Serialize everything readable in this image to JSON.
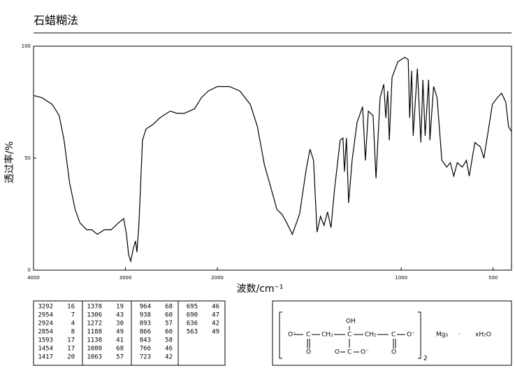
{
  "chart_data": {
    "type": "line",
    "title": "石蜡糊法",
    "x_label": "波数/cm⁻¹",
    "y_label": "透过率/%",
    "xlim": [
      4000,
      400
    ],
    "x_scale_break": 2000,
    "xticks": [
      4000,
      3000,
      2000,
      1000,
      500
    ],
    "ylim": [
      0,
      100
    ],
    "yticks": [
      0,
      50,
      100
    ],
    "color": "#000000",
    "x": [
      4000,
      3909,
      3796,
      3721,
      3668,
      3608,
      3547,
      3494,
      3419,
      3366,
      3306,
      3230,
      3155,
      3079,
      3019,
      2989,
      2966,
      2943,
      2913,
      2890,
      2875,
      2853,
      2815,
      2777,
      2702,
      2626,
      2513,
      2438,
      2362,
      2249,
      2174,
      2098,
      2000,
      1935,
      1878,
      1821,
      1782,
      1744,
      1706,
      1676,
      1649,
      1622,
      1592,
      1553,
      1515,
      1496,
      1477,
      1458,
      1439,
      1420,
      1401,
      1382,
      1363,
      1332,
      1317,
      1309,
      1298,
      1286,
      1267,
      1240,
      1210,
      1195,
      1179,
      1153,
      1137,
      1115,
      1095,
      1084,
      1073,
      1065,
      1050,
      1019,
      981,
      962,
      954,
      943,
      935,
      912,
      893,
      882,
      870,
      851,
      844,
      824,
      805,
      779,
      752,
      733,
      714,
      695,
      668,
      645,
      630,
      599,
      569,
      550,
      523,
      504,
      477,
      454,
      431,
      416,
      401
    ],
    "values": [
      78,
      77,
      74,
      69,
      58,
      39,
      27,
      21,
      18,
      18,
      16,
      18,
      18,
      21,
      23,
      16,
      7,
      4,
      10,
      13,
      8,
      21,
      58,
      63,
      65,
      68,
      71,
      70,
      70,
      72,
      77,
      80,
      82,
      82,
      80,
      74,
      64,
      47,
      36,
      27,
      25,
      21,
      16,
      25,
      46,
      54,
      49,
      17,
      24,
      20,
      26,
      19,
      36,
      58,
      59,
      44,
      59,
      30,
      49,
      66,
      73,
      49,
      71,
      69,
      41,
      77,
      83,
      68,
      80,
      58,
      86,
      93,
      95,
      94,
      68,
      89,
      60,
      90,
      57,
      85,
      60,
      85,
      58,
      82,
      77,
      49,
      46,
      48,
      42,
      48,
      46,
      49,
      42,
      57,
      55,
      50,
      64,
      74,
      77,
      79,
      75,
      64,
      62
    ],
    "peak_table": [
      [
        3292,
        16
      ],
      [
        2954,
        7
      ],
      [
        2924,
        4
      ],
      [
        2854,
        8
      ],
      [
        1593,
        17
      ],
      [
        1454,
        17
      ],
      [
        1417,
        20
      ],
      [
        1378,
        19
      ],
      [
        1306,
        43
      ],
      [
        1272,
        30
      ],
      [
        1188,
        49
      ],
      [
        1138,
        41
      ],
      [
        1080,
        68
      ],
      [
        1063,
        57
      ],
      [
        964,
        68
      ],
      [
        938,
        60
      ],
      [
        893,
        57
      ],
      [
        866,
        60
      ],
      [
        843,
        58
      ],
      [
        766,
        46
      ],
      [
        723,
        42
      ],
      [
        695,
        46
      ],
      [
        690,
        47
      ],
      [
        636,
        42
      ],
      [
        563,
        49
      ]
    ],
    "structure": {
      "o_left": "O⁻",
      "c1": "C",
      "ch2_1": "CH₂",
      "c2": "C",
      "ch2_2": "CH₂",
      "c3": "C",
      "o_right": "O⁻",
      "oh": "OH",
      "o1": "O",
      "o2": "O",
      "c4": "C",
      "o4": "O⁻",
      "o3": "O",
      "n": "2",
      "metal": "Mg₃",
      "dot": "·",
      "water": "xH₂O"
    }
  }
}
